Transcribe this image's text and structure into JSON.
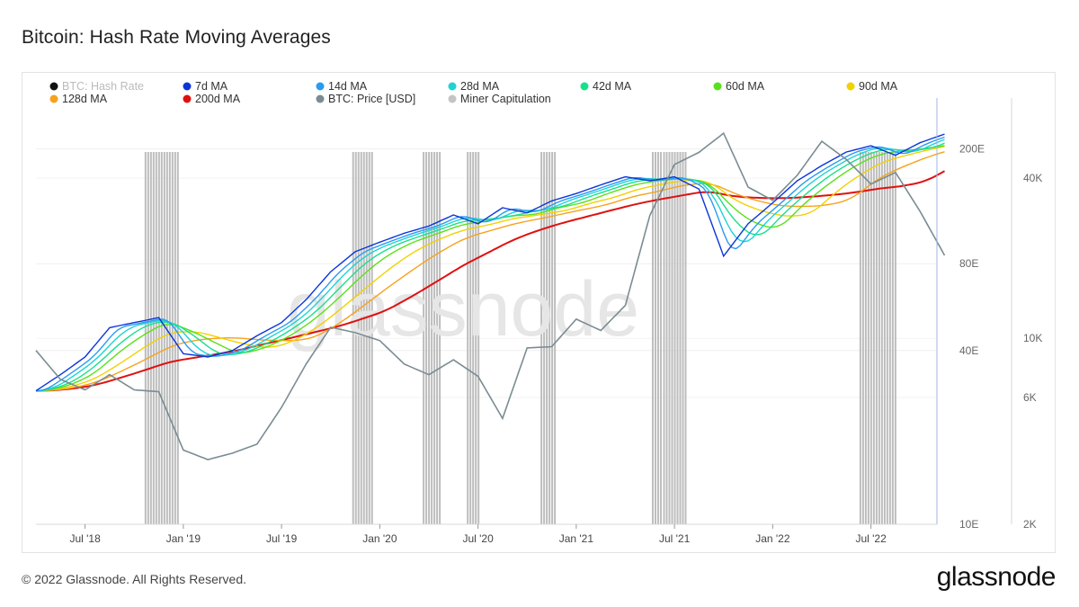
{
  "header": {
    "title": "Bitcoin: Hash Rate Moving Averages"
  },
  "footer": {
    "copyright": "© 2022 Glassnode. All Rights Reserved.",
    "logo": "glassnode"
  },
  "watermark": "glassnode",
  "chart_data": {
    "type": "line",
    "title": "Bitcoin: Hash Rate Moving Averages",
    "legend_placement": "top-left",
    "grid": true,
    "x_ticks": [
      "Jul '18",
      "Jan '19",
      "Jul '19",
      "Jan '20",
      "Jul '20",
      "Jan '21",
      "Jul '21",
      "Jan '22",
      "Jul '22"
    ],
    "x_range": [
      "2018-04",
      "2022-11"
    ],
    "y_axes": [
      {
        "name": "hash_rate",
        "scale": "log",
        "unit": "E",
        "range": [
          10,
          300
        ],
        "ticks": [
          "10E",
          "40E",
          "80E",
          "200E"
        ]
      },
      {
        "name": "price",
        "scale": "log",
        "unit": "USD",
        "range": [
          2000,
          80000
        ],
        "ticks": [
          "2K",
          "6K",
          "10K",
          "40K"
        ]
      }
    ],
    "legend": [
      {
        "name": "BTC: Hash Rate",
        "color": "#111111",
        "faded": true
      },
      {
        "name": "7d MA",
        "color": "#0b35d9"
      },
      {
        "name": "14d MA",
        "color": "#2a9bf0"
      },
      {
        "name": "28d MA",
        "color": "#1fd3d3"
      },
      {
        "name": "42d MA",
        "color": "#17e08c"
      },
      {
        "name": "60d MA",
        "color": "#5ae01a"
      },
      {
        "name": "90d MA",
        "color": "#f2d100"
      },
      {
        "name": "128d MA",
        "color": "#f6a21c"
      },
      {
        "name": "200d MA",
        "color": "#e01010"
      },
      {
        "name": "BTC: Price [USD]",
        "color": "#7a8c92"
      },
      {
        "name": "Miner Capitulation",
        "color": "#c4c4c4"
      }
    ],
    "x_months": [
      0,
      1.5,
      3,
      4.5,
      6,
      7.5,
      9,
      10.5,
      12,
      13.5,
      15,
      16.5,
      18,
      19.5,
      21,
      22.5,
      24,
      25.5,
      27,
      28.5,
      30,
      31.5,
      33,
      34.5,
      36,
      37.5,
      39,
      40.5,
      42,
      43.5,
      45,
      46.5,
      48,
      49.5,
      51,
      52.5,
      54,
      55.5
    ],
    "x_origin": "2018-04",
    "hash_7d": [
      29,
      33,
      38,
      48,
      50,
      52,
      39,
      38,
      40,
      45,
      50,
      60,
      75,
      88,
      95,
      102,
      108,
      118,
      110,
      125,
      120,
      132,
      140,
      150,
      160,
      155,
      160,
      145,
      85,
      110,
      130,
      155,
      175,
      195,
      205,
      190,
      210,
      225
    ],
    "price_usd": [
      9000,
      7000,
      6400,
      7300,
      6400,
      6300,
      3800,
      3500,
      3700,
      4000,
      5500,
      8000,
      11000,
      10500,
      9800,
      8000,
      7300,
      8300,
      7200,
      5000,
      9200,
      9300,
      11800,
      10700,
      13300,
      29000,
      45000,
      50000,
      59000,
      37000,
      33000,
      41000,
      55000,
      47000,
      38000,
      42000,
      30000,
      20500
    ],
    "capitulation_periods": [
      [
        "2018-10-20",
        "2018-12-20"
      ],
      [
        "2019-11-10",
        "2019-12-20"
      ],
      [
        "2020-03-20",
        "2020-04-20"
      ],
      [
        "2020-06-10",
        "2020-07-05"
      ],
      [
        "2020-10-25",
        "2020-11-20"
      ],
      [
        "2021-05-20",
        "2021-06-05"
      ],
      [
        "2021-06-10",
        "2021-07-25"
      ],
      [
        "2022-06-10",
        "2022-08-15"
      ]
    ]
  }
}
